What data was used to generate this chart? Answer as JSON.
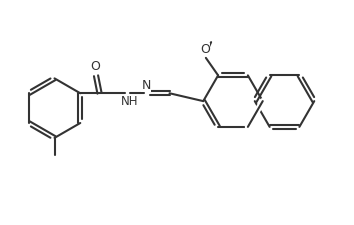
{
  "bg_color": "#ffffff",
  "line_color": "#333333",
  "atom_color": "#1a1a99",
  "line_width": 1.5,
  "font_size": 8.5,
  "figsize": [
    3.54,
    2.25
  ],
  "dpi": 100,
  "xlim": [
    0,
    100
  ],
  "ylim": [
    0,
    63.5
  ]
}
